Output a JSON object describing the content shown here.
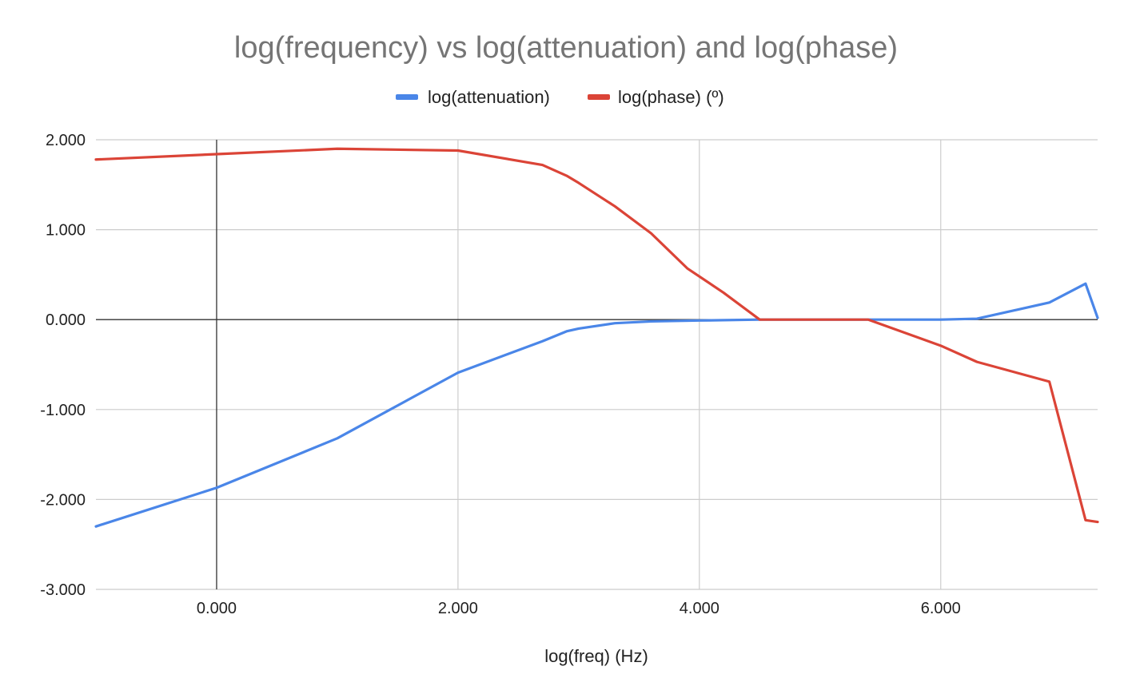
{
  "chart_data": {
    "type": "line",
    "title": "log(frequency) vs log(attenuation) and log(phase)",
    "xlabel": "log(freq) (Hz)",
    "ylabel": "",
    "xlim": [
      -1.0,
      7.3
    ],
    "ylim": [
      -3.0,
      2.0
    ],
    "xticks": [
      0,
      2,
      4,
      6
    ],
    "xtick_labels": [
      "0.000",
      "2.000",
      "4.000",
      "6.000"
    ],
    "yticks": [
      2,
      1,
      0,
      -1,
      -2,
      -3
    ],
    "ytick_labels": [
      "2.000",
      "1.000",
      "0.000",
      "-1.000",
      "-2.000",
      "-3.000"
    ],
    "grid": true,
    "legend_position": "top",
    "series": [
      {
        "name": "log(attenuation)",
        "color": "#4a86e8",
        "x": [
          -1.0,
          0.0,
          1.0,
          2.0,
          2.7,
          2.9,
          3.0,
          3.3,
          3.6,
          4.0,
          4.5,
          5.0,
          5.4,
          6.0,
          6.3,
          6.9,
          7.2,
          7.3
        ],
        "y": [
          -2.3,
          -1.87,
          -1.32,
          -0.59,
          -0.24,
          -0.13,
          -0.1,
          -0.04,
          -0.02,
          -0.01,
          0.0,
          0.0,
          0.0,
          0.0,
          0.01,
          0.19,
          0.4,
          0.02
        ]
      },
      {
        "name": "log(phase) (º)",
        "color": "#db4437",
        "x": [
          -1.0,
          0.0,
          1.0,
          2.0,
          2.7,
          2.9,
          3.0,
          3.3,
          3.6,
          3.9,
          4.2,
          4.5,
          5.0,
          5.4,
          6.0,
          6.3,
          6.9,
          7.2,
          7.3
        ],
        "y": [
          1.78,
          1.84,
          1.9,
          1.88,
          1.72,
          1.6,
          1.52,
          1.26,
          0.96,
          0.57,
          0.3,
          0.0,
          0.0,
          0.0,
          -0.29,
          -0.47,
          -0.69,
          -2.23,
          -2.25
        ]
      }
    ]
  }
}
